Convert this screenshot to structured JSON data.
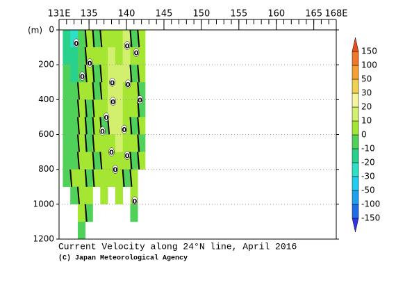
{
  "chart_data": {
    "type": "contour",
    "title": "Current Velocity along 24°N line, April 2016",
    "credit": "(C) Japan Meteorological Agency",
    "ylabel": "(m)",
    "xlim": [
      131,
      168
    ],
    "xticks": [
      {
        "value": 131,
        "label": "131E"
      },
      135,
      140,
      145,
      150,
      155,
      160,
      165,
      {
        "value": 168,
        "label": "168E"
      }
    ],
    "xminorticks": [
      131,
      132,
      133,
      134,
      135,
      136,
      137,
      138,
      139,
      140,
      141,
      142,
      143,
      144,
      145,
      146,
      147,
      148,
      149,
      150,
      151,
      152,
      153,
      154,
      155,
      156,
      157,
      158,
      159,
      160,
      161,
      162,
      163,
      164,
      165,
      166,
      167,
      168
    ],
    "ylim": [
      0,
      1200
    ],
    "yticks": [
      0,
      200,
      400,
      600,
      800,
      1000,
      1200
    ],
    "y_inverted": true,
    "grid": true,
    "levels": [
      -150,
      -100,
      -50,
      -30,
      -20,
      -10,
      0,
      10,
      20,
      30,
      50,
      100,
      150
    ],
    "colors": [
      "#3333e6",
      "#1e6ee6",
      "#1ea0f0",
      "#1ecdf0",
      "#2ee0c8",
      "#28d28c",
      "#50d25a",
      "#a5e632",
      "#d2f06e",
      "#f5f5a0",
      "#f0d250",
      "#f5a032",
      "#f07828",
      "#e6501e"
    ],
    "field": {
      "lon": [
        132,
        133,
        134,
        135,
        136,
        137,
        138,
        139,
        140,
        141,
        142
      ],
      "depth": [
        50,
        150,
        250,
        350,
        450,
        550,
        650,
        750,
        850,
        950,
        1050,
        1150
      ],
      "values": [
        [
          -20,
          -30,
          -10,
          0,
          -10,
          5,
          0,
          5,
          15,
          -5,
          5
        ],
        [
          -20,
          -20,
          -10,
          5,
          0,
          5,
          10,
          5,
          15,
          0,
          5
        ],
        [
          -10,
          -20,
          -5,
          5,
          -5,
          5,
          15,
          10,
          15,
          -5,
          5
        ],
        [
          -10,
          -10,
          0,
          5,
          -5,
          5,
          15,
          15,
          5,
          5,
          -5
        ],
        [
          -10,
          -5,
          5,
          -5,
          5,
          5,
          15,
          15,
          5,
          5,
          -5
        ],
        [
          -5,
          -5,
          5,
          -5,
          5,
          -5,
          15,
          15,
          5,
          -5,
          5
        ],
        [
          -10,
          -5,
          5,
          -5,
          5,
          5,
          5,
          15,
          5,
          5,
          -5
        ],
        [
          -10,
          -5,
          5,
          5,
          -5,
          5,
          5,
          5,
          5,
          -5,
          5
        ],
        [
          -10,
          5,
          5,
          -5,
          5,
          5,
          5,
          5,
          -5,
          5,
          null
        ],
        [
          null,
          -5,
          5,
          5,
          null,
          5,
          null,
          5,
          null,
          5,
          null
        ],
        [
          null,
          null,
          5,
          -5,
          null,
          null,
          null,
          null,
          null,
          -5,
          null
        ],
        [
          null,
          null,
          -5,
          null,
          null,
          null,
          null,
          null,
          null,
          null,
          null
        ]
      ]
    },
    "contour_labels": [
      {
        "x": 133.3,
        "y": 75,
        "value": 0
      },
      {
        "x": 134.1,
        "y": 265,
        "value": 0
      },
      {
        "x": 135.1,
        "y": 190,
        "value": 0
      },
      {
        "x": 136.8,
        "y": 580,
        "value": 0
      },
      {
        "x": 138.1,
        "y": 300,
        "value": 0
      },
      {
        "x": 138.2,
        "y": 410,
        "value": 0
      },
      {
        "x": 137.3,
        "y": 500,
        "value": 0
      },
      {
        "x": 140.1,
        "y": 90,
        "value": 0
      },
      {
        "x": 141.3,
        "y": 130,
        "value": 0
      },
      {
        "x": 140.2,
        "y": 310,
        "value": 0
      },
      {
        "x": 141.8,
        "y": 400,
        "value": 0
      },
      {
        "x": 139.7,
        "y": 570,
        "value": 0
      },
      {
        "x": 138.0,
        "y": 700,
        "value": 0
      },
      {
        "x": 140.1,
        "y": 720,
        "value": 0
      },
      {
        "x": 138.5,
        "y": 800,
        "value": 0
      },
      {
        "x": 141.1,
        "y": 980,
        "value": 0
      }
    ]
  }
}
